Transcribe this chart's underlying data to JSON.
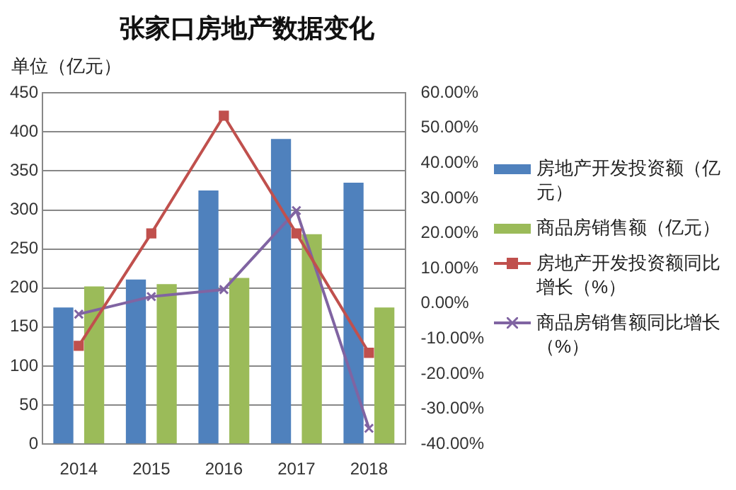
{
  "chart_data": {
    "type": "bar",
    "title": "张家口房地产数据变化",
    "ylabel": "单位（亿元）",
    "categories": [
      "2014",
      "2015",
      "2016",
      "2017",
      "2018"
    ],
    "series": [
      {
        "name": "房地产开发投资额（亿元）",
        "color": "#4f81bd",
        "values": [
          175,
          211,
          325,
          391,
          335
        ]
      },
      {
        "name": "商品房销售额（亿元）",
        "color": "#9bbb59",
        "values": [
          202,
          205,
          213,
          269,
          175
        ]
      },
      {
        "name": "房地产开发投资额同比增长（%）",
        "type": "line",
        "axis": "y2",
        "color": "#c0504d",
        "marker": "square",
        "values": [
          -12,
          20,
          53.5,
          20,
          -14
        ]
      },
      {
        "name": "商品房销售额同比增长（%）",
        "type": "line",
        "axis": "y2",
        "color": "#8064a2",
        "marker": "cross",
        "values": [
          -3,
          2,
          4,
          26.5,
          -35.5
        ]
      }
    ],
    "ylim": [
      0,
      450
    ],
    "yticks": [
      0,
      50,
      100,
      150,
      200,
      250,
      300,
      350,
      400,
      450
    ],
    "y2lim": [
      -40,
      60
    ],
    "y2ticks": [
      {
        "value": -40,
        "label": "-40.00%"
      },
      {
        "value": -30,
        "label": "-30.00%"
      },
      {
        "value": -20,
        "label": "-20.00%"
      },
      {
        "value": -10,
        "label": "-10.00%"
      },
      {
        "value": 0,
        "label": "0.00%"
      },
      {
        "value": 10,
        "label": "10.00%"
      },
      {
        "value": 20,
        "label": "20.00%"
      },
      {
        "value": 30,
        "label": "30.00%"
      },
      {
        "value": 40,
        "label": "40.00%"
      },
      {
        "value": 50,
        "label": "50.00%"
      },
      {
        "value": 60,
        "label": "60.00%"
      }
    ],
    "grid": "y",
    "legend": "right"
  }
}
